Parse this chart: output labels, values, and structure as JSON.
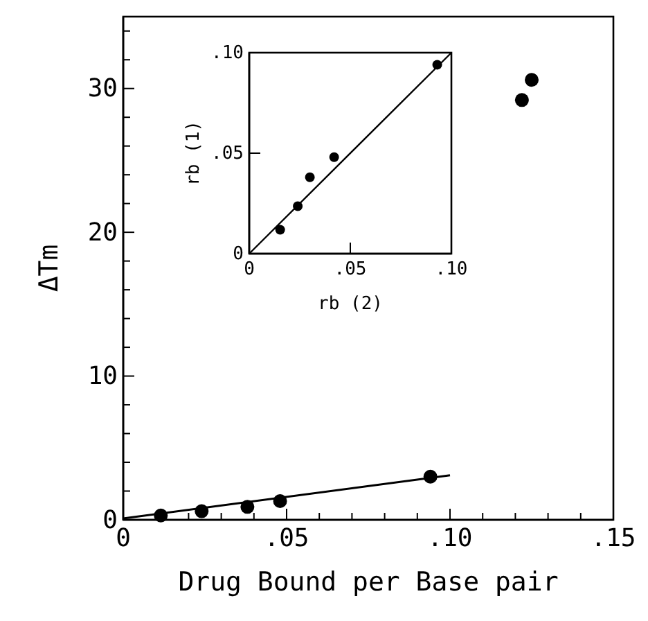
{
  "chart_data": [
    {
      "type": "scatter",
      "xlabel": "Drug Bound per Base pair",
      "ylabel": "ΔTm",
      "xlim": [
        0,
        0.15
      ],
      "ylim": [
        0,
        35
      ],
      "xticks": [
        {
          "value": 0,
          "label": "0"
        },
        {
          "value": 0.01,
          "label": null
        },
        {
          "value": 0.02,
          "label": null
        },
        {
          "value": 0.03,
          "label": null
        },
        {
          "value": 0.04,
          "label": null
        },
        {
          "value": 0.05,
          "label": ".05"
        },
        {
          "value": 0.06,
          "label": null
        },
        {
          "value": 0.07,
          "label": null
        },
        {
          "value": 0.08,
          "label": null
        },
        {
          "value": 0.09,
          "label": null
        },
        {
          "value": 0.1,
          "label": ".10"
        },
        {
          "value": 0.11,
          "label": null
        },
        {
          "value": 0.12,
          "label": null
        },
        {
          "value": 0.13,
          "label": null
        },
        {
          "value": 0.14,
          "label": null
        },
        {
          "value": 0.15,
          "label": ".15"
        }
      ],
      "yticks": [
        0,
        {
          "value": 2,
          "label": null
        },
        {
          "value": 4,
          "label": null
        },
        {
          "value": 6,
          "label": null
        },
        {
          "value": 8,
          "label": null
        },
        10,
        {
          "value": 12,
          "label": null
        },
        {
          "value": 14,
          "label": null
        },
        {
          "value": 16,
          "label": null
        },
        {
          "value": 18,
          "label": null
        },
        20,
        {
          "value": 22,
          "label": null
        },
        {
          "value": 24,
          "label": null
        },
        {
          "value": 26,
          "label": null
        },
        {
          "value": 28,
          "label": null
        },
        30,
        {
          "value": 32,
          "label": null
        },
        {
          "value": 34,
          "label": null
        }
      ],
      "grid": false,
      "marker": "circle",
      "series": [
        {
          "color": "#000000",
          "x": [
            0.0115,
            0.024,
            0.038,
            0.048,
            0.094,
            0.122,
            0.125
          ],
          "values": [
            0.3,
            0.6,
            0.9,
            1.3,
            3.0,
            29.2,
            30.6
          ]
        },
        {
          "type": "line",
          "color": "#000000",
          "marker": "none",
          "line_style": "solid",
          "x": [
            0,
            0.1
          ],
          "values": [
            0.1,
            3.1
          ]
        }
      ]
    },
    {
      "type": "scatter",
      "xlabel": "rb (2)",
      "ylabel": "rb (1)",
      "xlim": [
        0,
        0.1
      ],
      "ylim": [
        0,
        0.1
      ],
      "xticks": [
        {
          "value": 0,
          "label": "0"
        },
        {
          "value": 0.05,
          "label": ".05"
        },
        {
          "value": 0.1,
          "label": ".10"
        }
      ],
      "yticks": [
        {
          "value": 0,
          "label": "0"
        },
        {
          "value": 0.05,
          "label": ".05"
        },
        {
          "value": 0.1,
          "label": ".10"
        }
      ],
      "grid": false,
      "marker": "circle",
      "series": [
        {
          "color": "#000000",
          "x": [
            0.0153,
            0.024,
            0.03,
            0.042,
            0.093
          ],
          "values": [
            0.0119,
            0.0236,
            0.038,
            0.048,
            0.094
          ]
        },
        {
          "type": "line",
          "color": "#000000",
          "marker": "none",
          "line_style": "solid",
          "x": [
            0,
            0.1
          ],
          "values": [
            0,
            0.1
          ]
        }
      ]
    }
  ]
}
